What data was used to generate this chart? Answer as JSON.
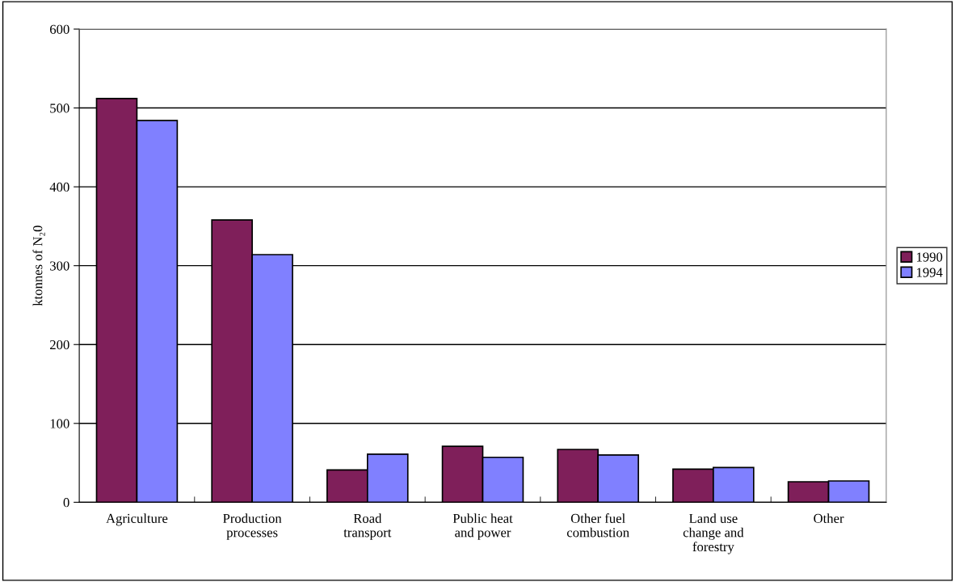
{
  "chart_data": {
    "type": "bar",
    "ylabel": "ktonnes of N₂0",
    "categories": [
      "Agriculture",
      "Production\nprocesses",
      "Road\ntransport",
      "Public heat\nand power",
      "Other fuel\ncombustion",
      "Land use\nchange and\nforestry",
      "Other"
    ],
    "series": [
      {
        "name": "1990",
        "color": "#7f1f5a",
        "values": [
          512,
          358,
          41,
          71,
          67,
          42,
          26
        ]
      },
      {
        "name": "1994",
        "color": "#8080ff",
        "values": [
          484,
          314,
          61,
          57,
          60,
          44,
          27
        ]
      }
    ],
    "ylim": [
      0,
      600
    ],
    "yticks": [
      0,
      100,
      200,
      300,
      400,
      500,
      600
    ],
    "grid": "y",
    "legend": "right"
  }
}
